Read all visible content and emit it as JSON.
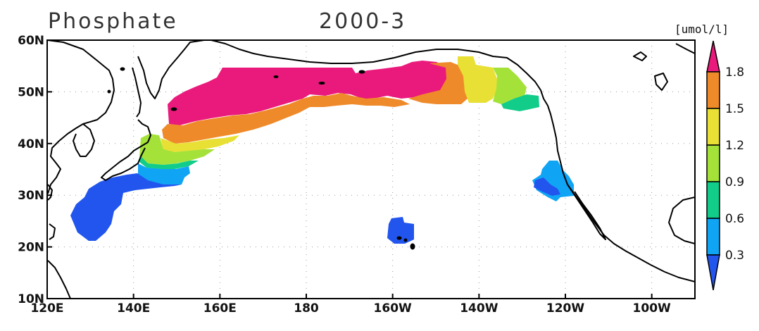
{
  "title": {
    "variable": "Phosphate",
    "period": "2000-3"
  },
  "units": "[umol/l]",
  "map": {
    "projection": "cylindrical",
    "lon_range": [
      120,
      270
    ],
    "lat_range": [
      10,
      60
    ],
    "x_ticks": [
      {
        "lon": 120,
        "label": "120E"
      },
      {
        "lon": 140,
        "label": "140E"
      },
      {
        "lon": 160,
        "label": "160E"
      },
      {
        "lon": 180,
        "label": "180"
      },
      {
        "lon": 200,
        "label": "160W"
      },
      {
        "lon": 220,
        "label": "140W"
      },
      {
        "lon": 240,
        "label": "120W"
      },
      {
        "lon": 260,
        "label": "100W"
      }
    ],
    "y_ticks": [
      {
        "lat": 10,
        "label": "10N"
      },
      {
        "lat": 20,
        "label": "20N"
      },
      {
        "lat": 30,
        "label": "30N"
      },
      {
        "lat": 40,
        "label": "40N"
      },
      {
        "lat": 50,
        "label": "50N"
      },
      {
        "lat": 60,
        "label": "60N"
      }
    ],
    "gridlines": "dotted"
  },
  "colorbar": {
    "levels": [
      "0.3",
      "0.6",
      "0.9",
      "1.2",
      "1.5",
      "1.8"
    ],
    "colors": [
      "#2255ee",
      "#10a4f4",
      "#12cc8a",
      "#a4e23a",
      "#e8e035",
      "#ef8a2a",
      "#ea1a7c"
    ],
    "extend": "both"
  },
  "chart_data": {
    "type": "heatmap",
    "title": "Phosphate 2000-3",
    "units": "[umol/l]",
    "xlim": [
      120,
      270
    ],
    "ylim": [
      10,
      60
    ],
    "regions": [
      {
        "region": "subarctic North Pacific 165E-150W",
        "lat_range": [
          45,
          55
        ],
        "level": ">1.8",
        "color": "#ea1a7c"
      },
      {
        "region": "Gulf of Alaska 155W-145W",
        "lat_range": [
          47,
          54
        ],
        "level": "1.5-1.8",
        "color": "#ef8a2a"
      },
      {
        "region": "eastern Gulf of Alaska 145W-135W",
        "lat_range": [
          48,
          55
        ],
        "level": "1.2-1.5",
        "color": "#e8e035"
      },
      {
        "region": "off British Columbia 135W-130W",
        "lat_range": [
          48,
          54
        ],
        "level": "0.9-1.2",
        "color": "#a4e23a"
      },
      {
        "region": "off Vancouver Island 130W-127W",
        "lat_range": [
          47,
          51
        ],
        "level": "0.6-0.9",
        "color": "#12cc8a"
      },
      {
        "region": "Kuroshio extension 145E-150E",
        "lat_range": [
          37,
          42
        ],
        "level": "0.6-1.2",
        "color": "#a4e23a"
      },
      {
        "region": "south of Japan 135E-150E",
        "lat_range": [
          32,
          37
        ],
        "level": "0.3-0.6",
        "color": "#10a4f4"
      },
      {
        "region": "western subtropical Pacific 125E-140E",
        "lat_range": [
          21,
          33
        ],
        "level": "<0.3",
        "color": "#2255ee"
      },
      {
        "region": "around Hawaii 162W-155W",
        "lat_range": [
          20,
          26
        ],
        "level": "<0.3",
        "color": "#2255ee"
      },
      {
        "region": "off California 125W-118W",
        "lat_range": [
          29,
          37
        ],
        "level": "0.3-0.6",
        "color": "#10a4f4"
      }
    ]
  }
}
